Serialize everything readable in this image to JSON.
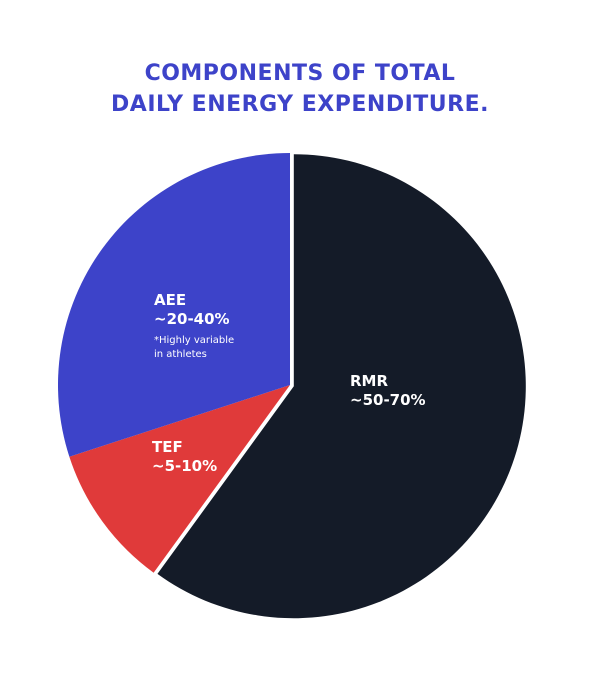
{
  "title": {
    "line1": "COMPONENTS OF TOTAL",
    "line2": "DAILY ENERGY EXPENDITURE."
  },
  "colors": {
    "title": "#3d43c9",
    "rmr": "#141b28",
    "aee": "#3d43c9",
    "tef": "#e03a3a",
    "label": "#ffffff"
  },
  "chart_data": {
    "type": "pie",
    "title": "COMPONENTS OF TOTAL DAILY ENERGY EXPENDITURE.",
    "slices": [
      {
        "key": "rmr",
        "name": "RMR",
        "range": "~50-70%",
        "value": 60,
        "exploded": true
      },
      {
        "key": "tef",
        "name": "TEF",
        "range": "~5-10%",
        "value": 10,
        "exploded": false
      },
      {
        "key": "aee",
        "name": "AEE",
        "range": "~20-40%",
        "value": 30,
        "exploded": false,
        "note": [
          "*Highly variable",
          "in athletes"
        ]
      }
    ]
  }
}
